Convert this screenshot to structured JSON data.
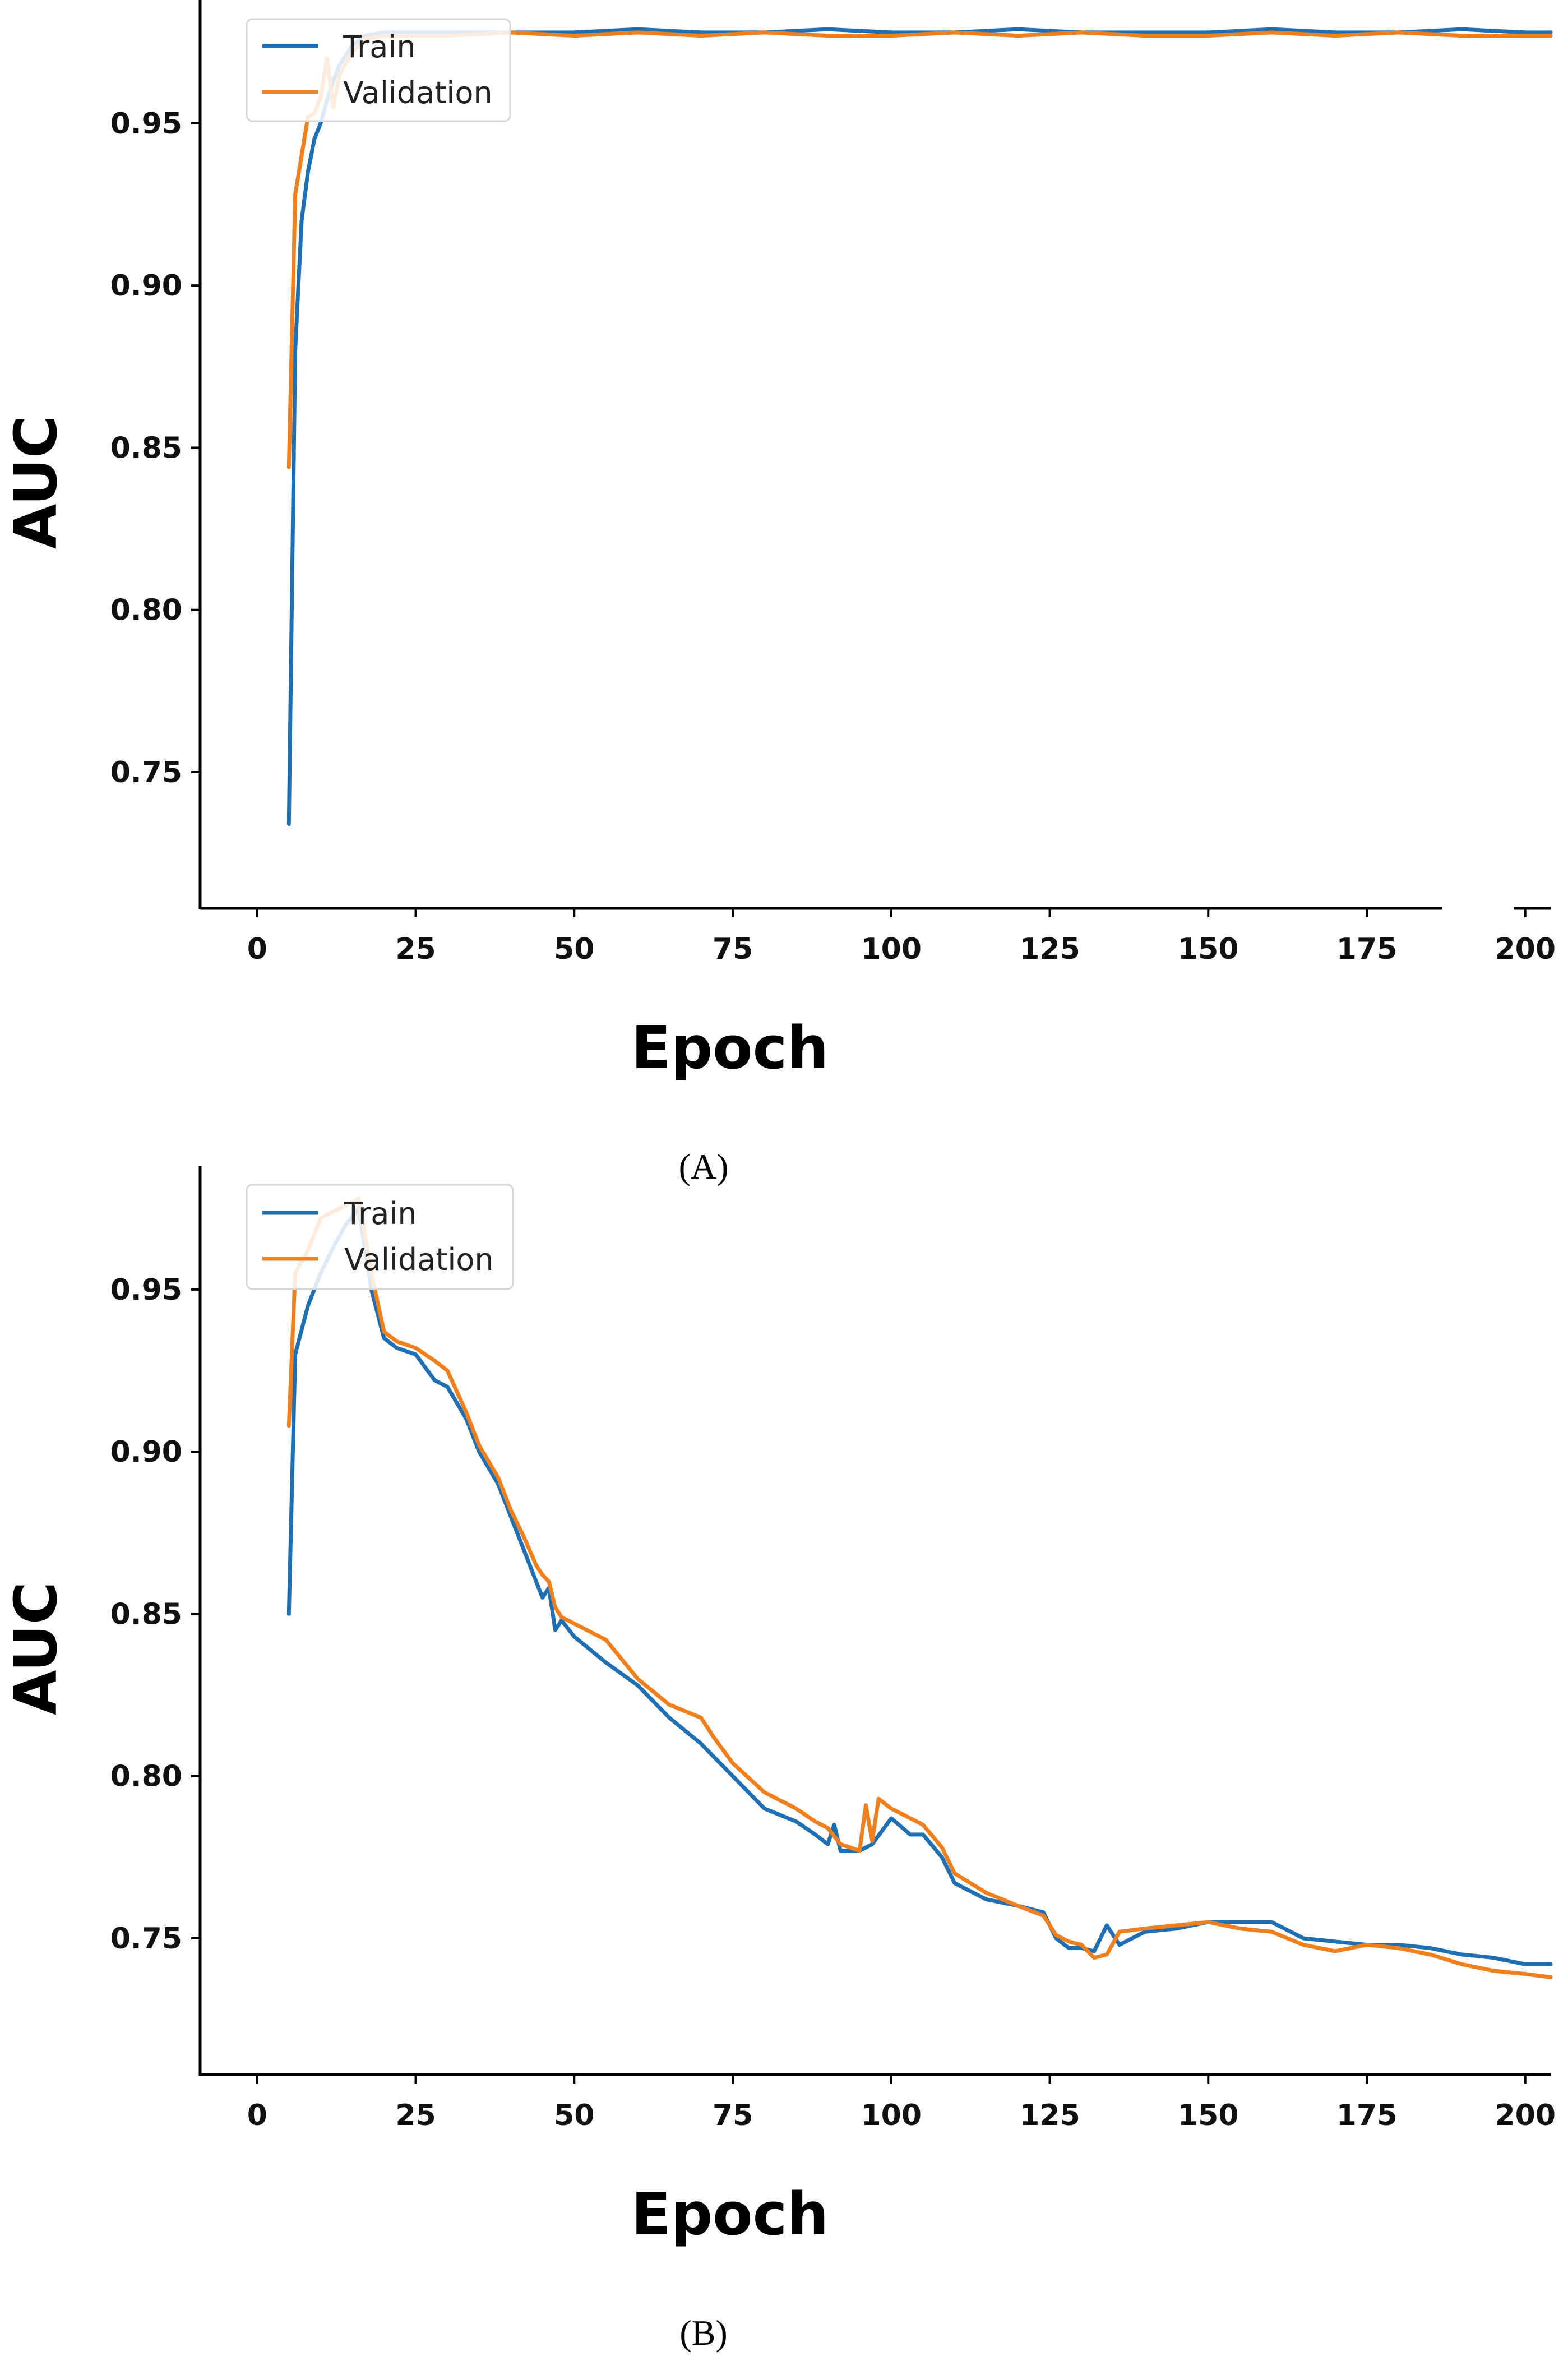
{
  "colors": {
    "train": "#1f6fb4",
    "validation": "#f07f1c",
    "axis": "#000000"
  },
  "chart_data": [
    {
      "type": "line",
      "caption": "(A)",
      "xlabel": "Epoch",
      "ylabel": "AUC",
      "xlim": [
        -9,
        204
      ],
      "ylim": [
        0.708,
        0.988
      ],
      "xticks": [
        0,
        25,
        50,
        75,
        100,
        125,
        150,
        175,
        200
      ],
      "yticks": [
        0.75,
        0.8,
        0.85,
        0.9,
        0.95
      ],
      "legend": {
        "placement": "top-left",
        "entries": [
          "Train",
          "Validation"
        ]
      },
      "grid": false,
      "series": [
        {
          "name": "Train",
          "color": "#1f6fb4",
          "x": [
            5,
            6,
            7,
            8,
            9,
            10,
            11,
            12,
            13,
            15,
            17,
            20,
            30,
            40,
            50,
            60,
            70,
            80,
            90,
            100,
            110,
            120,
            130,
            140,
            150,
            160,
            170,
            180,
            190,
            200,
            204
          ],
          "y": [
            0.734,
            0.88,
            0.92,
            0.935,
            0.945,
            0.95,
            0.957,
            0.963,
            0.968,
            0.974,
            0.977,
            0.978,
            0.978,
            0.978,
            0.978,
            0.979,
            0.978,
            0.978,
            0.979,
            0.978,
            0.978,
            0.979,
            0.978,
            0.978,
            0.978,
            0.979,
            0.978,
            0.978,
            0.979,
            0.978,
            0.978
          ]
        },
        {
          "name": "Validation",
          "color": "#f07f1c",
          "x": [
            5,
            6,
            7,
            8,
            9,
            10,
            11,
            12,
            13,
            15,
            17,
            20,
            30,
            40,
            50,
            60,
            70,
            80,
            90,
            100,
            110,
            120,
            130,
            140,
            150,
            160,
            170,
            180,
            190,
            200,
            204
          ],
          "y": [
            0.844,
            0.928,
            0.94,
            0.952,
            0.953,
            0.958,
            0.97,
            0.955,
            0.965,
            0.972,
            0.976,
            0.977,
            0.977,
            0.978,
            0.977,
            0.978,
            0.977,
            0.978,
            0.977,
            0.977,
            0.978,
            0.977,
            0.978,
            0.977,
            0.977,
            0.978,
            0.977,
            0.978,
            0.977,
            0.977,
            0.977
          ]
        }
      ]
    },
    {
      "type": "line",
      "caption": "(B)",
      "xlabel": "Epoch",
      "ylabel": "AUC",
      "xlim": [
        -9,
        204
      ],
      "ylim": [
        0.708,
        0.988
      ],
      "xticks": [
        0,
        25,
        50,
        75,
        100,
        125,
        150,
        175,
        200
      ],
      "yticks": [
        0.75,
        0.8,
        0.85,
        0.9,
        0.95
      ],
      "legend": {
        "placement": "top-left",
        "entries": [
          "Train",
          "Validation"
        ]
      },
      "grid": false,
      "series": [
        {
          "name": "Train",
          "color": "#1f6fb4",
          "x": [
            5,
            6,
            8,
            10,
            12,
            14,
            16,
            18,
            20,
            22,
            25,
            28,
            30,
            33,
            35,
            38,
            40,
            42,
            44,
            45,
            46,
            47,
            48,
            50,
            55,
            60,
            65,
            70,
            75,
            80,
            85,
            88,
            90,
            91,
            92,
            95,
            97,
            100,
            103,
            105,
            108,
            110,
            115,
            120,
            124,
            126,
            128,
            130,
            132,
            134,
            136,
            140,
            145,
            150,
            155,
            160,
            165,
            170,
            175,
            180,
            185,
            190,
            195,
            200,
            204
          ],
          "y": [
            0.85,
            0.93,
            0.945,
            0.955,
            0.963,
            0.97,
            0.975,
            0.95,
            0.935,
            0.932,
            0.93,
            0.922,
            0.92,
            0.91,
            0.9,
            0.89,
            0.88,
            0.87,
            0.86,
            0.855,
            0.858,
            0.845,
            0.848,
            0.843,
            0.835,
            0.828,
            0.818,
            0.81,
            0.8,
            0.79,
            0.786,
            0.782,
            0.779,
            0.785,
            0.777,
            0.777,
            0.779,
            0.787,
            0.782,
            0.782,
            0.775,
            0.767,
            0.762,
            0.76,
            0.758,
            0.75,
            0.747,
            0.747,
            0.746,
            0.754,
            0.748,
            0.752,
            0.753,
            0.755,
            0.755,
            0.755,
            0.75,
            0.749,
            0.748,
            0.748,
            0.747,
            0.745,
            0.744,
            0.742,
            0.742
          ]
        },
        {
          "name": "Validation",
          "color": "#f07f1c",
          "x": [
            5,
            6,
            8,
            10,
            12,
            14,
            16,
            18,
            20,
            22,
            25,
            28,
            30,
            33,
            35,
            38,
            40,
            42,
            44,
            45,
            46,
            47,
            48,
            50,
            55,
            60,
            65,
            70,
            72,
            75,
            80,
            85,
            88,
            90,
            92,
            95,
            96,
            97,
            98,
            100,
            103,
            105,
            108,
            110,
            115,
            120,
            124,
            126,
            128,
            130,
            132,
            134,
            136,
            140,
            145,
            150,
            155,
            160,
            165,
            170,
            175,
            180,
            185,
            190,
            195,
            200,
            204
          ],
          "y": [
            0.908,
            0.955,
            0.962,
            0.972,
            0.974,
            0.976,
            0.978,
            0.955,
            0.937,
            0.934,
            0.932,
            0.928,
            0.925,
            0.912,
            0.902,
            0.892,
            0.882,
            0.874,
            0.865,
            0.862,
            0.86,
            0.852,
            0.849,
            0.847,
            0.842,
            0.83,
            0.822,
            0.818,
            0.812,
            0.804,
            0.795,
            0.79,
            0.786,
            0.784,
            0.779,
            0.777,
            0.791,
            0.78,
            0.793,
            0.79,
            0.787,
            0.785,
            0.778,
            0.77,
            0.764,
            0.76,
            0.757,
            0.751,
            0.749,
            0.748,
            0.744,
            0.745,
            0.752,
            0.753,
            0.754,
            0.755,
            0.753,
            0.752,
            0.748,
            0.746,
            0.748,
            0.747,
            0.745,
            0.742,
            0.74,
            0.739,
            0.738
          ]
        }
      ]
    }
  ]
}
